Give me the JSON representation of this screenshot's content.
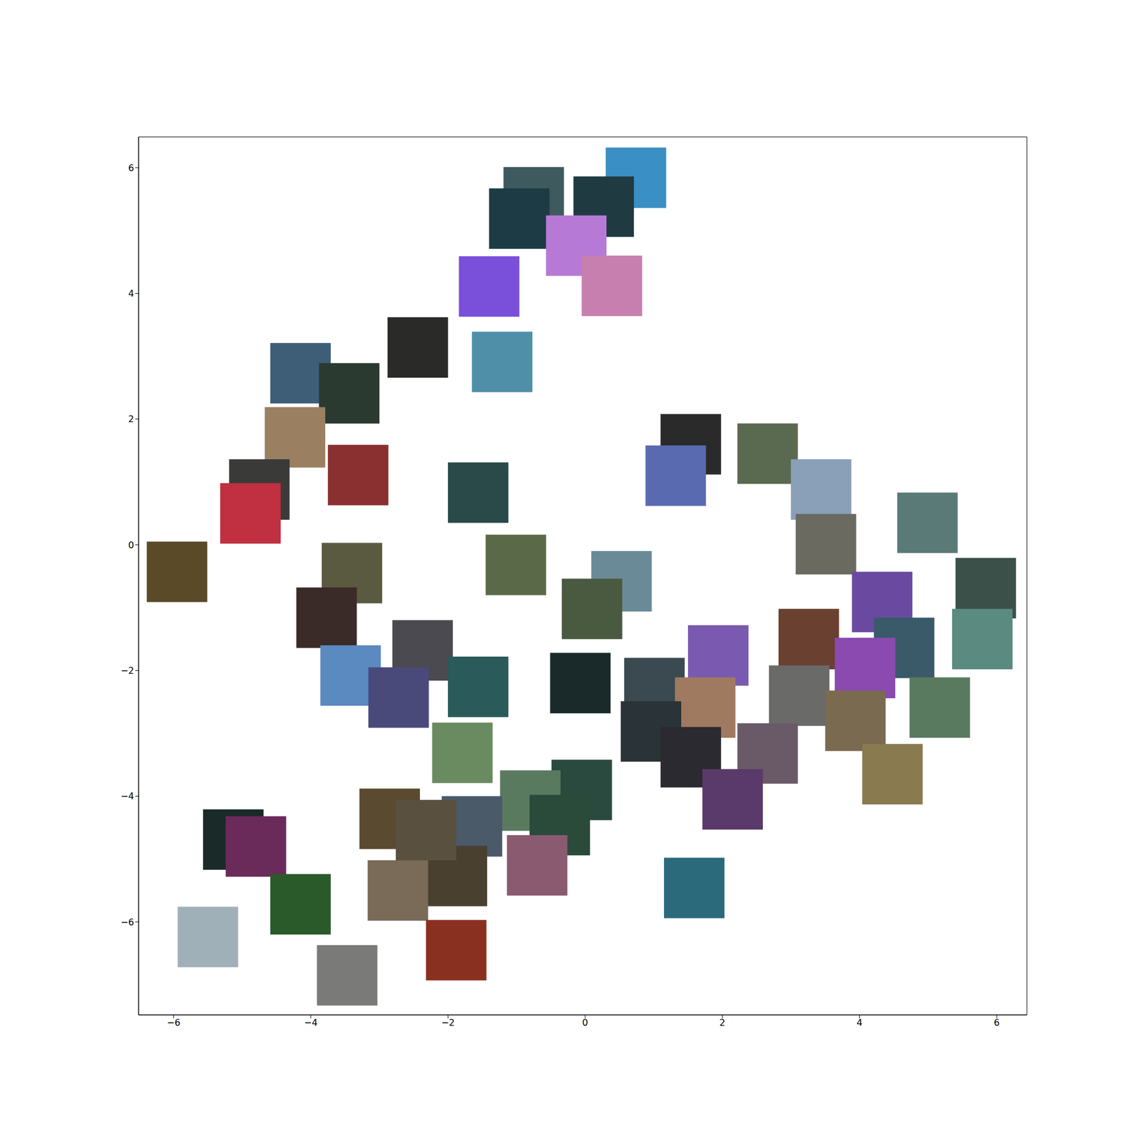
{
  "chart_data": {
    "type": "scatter",
    "marker": "square",
    "grid": false,
    "xlim": [
      -6.51,
      6.44
    ],
    "ylim": [
      -7.48,
      6.49
    ],
    "xticks": [
      {
        "value": -6,
        "label": "−6"
      },
      {
        "value": -4,
        "label": "−4"
      },
      {
        "value": -2,
        "label": "−2"
      },
      0,
      2,
      4,
      6
    ],
    "yticks": [
      {
        "value": -6,
        "label": "−6"
      },
      {
        "value": -4,
        "label": "−4"
      },
      {
        "value": -2,
        "label": "−2"
      },
      0,
      2,
      4,
      6
    ],
    "x": [
      0.74,
      -0.75,
      0.27,
      -0.96,
      -0.13,
      -1.4,
      0.39,
      -2.44,
      -1.21,
      -4.15,
      -3.44,
      -4.23,
      -3.31,
      -4.75,
      -4.88,
      -5.95,
      -1.56,
      -1.01,
      -3.4,
      -3.77,
      -3.42,
      -2.37,
      -1.56,
      -2.72,
      -1.79,
      0.53,
      0.1,
      1.54,
      1.32,
      2.66,
      3.44,
      3.51,
      4.99,
      5.84,
      4.33,
      5.79,
      4.65,
      3.26,
      4.08,
      5.17,
      1.94,
      -0.07,
      1.01,
      1.75,
      3.12,
      3.94,
      2.66,
      0.96,
      1.54,
      2.15,
      4.48,
      1.59,
      -0.05,
      -0.8,
      -0.37,
      -1.65,
      -0.7,
      -2.85,
      -1.87,
      -2.73,
      -1.88,
      -5.13,
      -4.8,
      -4.15,
      -5.5,
      -3.47,
      -2.32
    ],
    "y": [
      5.84,
      5.53,
      5.38,
      5.19,
      4.76,
      4.11,
      4.12,
      3.14,
      2.91,
      2.73,
      2.41,
      1.71,
      1.11,
      0.88,
      0.5,
      -0.43,
      0.83,
      -0.32,
      -0.45,
      -1.16,
      -2.08,
      -1.68,
      -2.26,
      -2.43,
      -3.31,
      -0.58,
      -1.02,
      1.6,
      1.1,
      1.45,
      0.88,
      0.01,
      0.35,
      -0.69,
      -0.91,
      -1.5,
      -1.64,
      -1.5,
      -1.96,
      -2.59,
      -1.76,
      -2.2,
      -2.28,
      -2.59,
      -2.4,
      -2.8,
      -3.32,
      -2.97,
      -3.38,
      -4.05,
      -3.65,
      -5.46,
      -3.9,
      -4.07,
      -4.46,
      -4.48,
      -5.1,
      -4.36,
      -5.27,
      -5.5,
      -6.45,
      -4.69,
      -4.8,
      -5.72,
      -6.24,
      -6.85,
      -4.54
    ],
    "colors": [
      "#3a8fc4",
      "#3f5a5e",
      "#1f3a40",
      "#1d3b44",
      "#b67ad6",
      "#7a4fd9",
      "#c77fb0",
      "#2a2a28",
      "#4f8fa8",
      "#3e5e78",
      "#2a3a30",
      "#9a8060",
      "#8a3030",
      "#3a3a38",
      "#c03040",
      "#5a4a28",
      "#2a4a4a",
      "#5a6a48",
      "#5a5a40",
      "#3a2a28",
      "#5a8ac0",
      "#4a4a50",
      "#2a5a5a",
      "#4a4a7a",
      "#6a8a60",
      "#6a8a98",
      "#4a5a40",
      "#2a2a2a",
      "#5a6ab0",
      "#5a6a50",
      "#8aa0b8",
      "#6a6a60",
      "#5a7a78",
      "#3a5048",
      "#6a4aa0",
      "#5a8a80",
      "#3a5a6a",
      "#6a4030",
      "#8a4ab0",
      "#5a7a60",
      "#7a5ab0",
      "#1a2a2a",
      "#3a4a50",
      "#a07a60",
      "#6a6a68",
      "#7a6a50",
      "#6a5a68",
      "#2a3438",
      "#2a2a30",
      "#5a3a6a",
      "#8a7a50",
      "#2a6a7a",
      "#2a4a40",
      "#5a7a60",
      "#2a4a3a",
      "#4a5a68",
      "#8a5a70",
      "#5a4a30",
      "#4a4030",
      "#7a6a58",
      "#8a3020",
      "#1a2a28",
      "#6a2a5a",
      "#2a5a2a",
      "#a0b0b8",
      "#7a7a78",
      "#5a5040"
    ]
  }
}
